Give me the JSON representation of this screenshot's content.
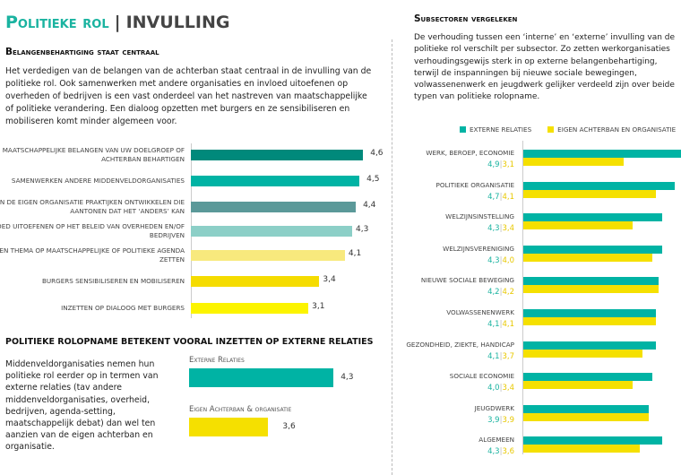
{
  "header": {
    "title_part1": "Politieke rol",
    "separator": "|",
    "title_part2": "INVULLING"
  },
  "section1": {
    "heading": "Belangenbehartiging staat centraal",
    "body": "Het verdedigen van de belangen van de achterban staat centraal in de invulling van de politieke rol. Ook samenwerken met andere organisaties en invloed uitoefenen op overheden of bedrijven is een vast onderdeel van het nastreven van maatschappelijke of politieke verandering. Een dialoog opzetten met burgers en ze sensibiliseren en mobiliseren komt minder algemeen voor."
  },
  "section2": {
    "heading": "POLITIEKE ROLOPNAME BETEKENT VOORAL INZETTEN OP EXTERNE RELATIES",
    "body": "Middenveldorganisaties nemen hun politieke rol eerder op in termen van externe relaties (tav andere middenveldorganisaties, overheid, bedrijven, agenda-setting, maatschappelijk debat) dan wel ten aanzien van de eigen achterban en organisatie."
  },
  "section3": {
    "heading": "Subsectoren vergeleken",
    "body": "De verhouding tussen een ‘interne’ en ‘externe’ invulling van de politieke rol verschilt per subsector. Zo zetten werkorganisaties verhoudingsgewijs sterk in op externe belangenbehartiging, terwijl de inspanningen bij nieuwe sociale bewegingen, volwassenenwerk en jeugdwerk gelijker verdeeld zijn over beide typen van politieke rolopname."
  },
  "colors": {
    "teal": "#00b3a4",
    "yellow": "#f5e000"
  },
  "chart_data": [
    {
      "type": "bar",
      "orientation": "horizontal",
      "title": "",
      "categories": [
        "E MAATSCHAPPELIJKE BELANGEN VAN UW DOELGROEP OF ACHTERBAN BEHARTIGEN",
        "SAMENWERKEN  ANDERE MIDDENVELDORGANISATIES",
        "BINNEN DE EIGEN ORGANISATIE PRAKTIJKEN ONTWIKKELEN DIE AANTONEN DAT HET ‘ANDERS’ KAN",
        "NVLOED UITOEFENEN OP HET BELEID VAN OVERHEDEN EN/OF BEDRIJVEN",
        "EEN THEMA OP MAATSCHAPPELIJKE OF POLITIEKE AGENDA ZETTEN",
        "BURGERS SENSIBILISEREN EN MOBILISEREN",
        "INZETTEN OP DIALOOG MET BURGERS"
      ],
      "values": [
        4.6,
        4.5,
        4.4,
        4.3,
        4.1,
        3.4,
        3.1
      ],
      "labels": [
        "4,6",
        "4,5",
        "4,4",
        "4,3",
        "4,1",
        "3,4",
        "3,1"
      ],
      "colors": [
        "#00897b",
        "#00b3a4",
        "#5b9999",
        "#8ccfc7",
        "#f8e97d",
        "#f5dc00",
        "#fcf400"
      ]
    },
    {
      "type": "bar",
      "orientation": "horizontal",
      "categories": [
        "Externe Relaties",
        "Eigen Achterban & organisatie"
      ],
      "values": [
        4.3,
        3.6
      ],
      "labels": [
        "4,3",
        "3,6"
      ],
      "colors": [
        "#00b3a4",
        "#f5e000"
      ]
    },
    {
      "type": "bar",
      "orientation": "horizontal",
      "legend": "top",
      "series": [
        {
          "name": "EXTERNE RELATIES",
          "values": [
            4.9,
            4.7,
            4.3,
            4.3,
            4.2,
            4.1,
            4.1,
            4.0,
            3.9,
            4.3
          ]
        },
        {
          "name": "EIGEN ACHTERBAN EN ORGANISATIE",
          "values": [
            3.1,
            4.1,
            3.4,
            4.0,
            4.2,
            4.1,
            3.7,
            3.4,
            3.9,
            3.6
          ]
        }
      ],
      "categories": [
        "WERK, BEROEP, ECONOMIE",
        "POLITIEKE ORGANISATIE",
        "WELZIJNSINSTELLING",
        "WELZIJNSVERENIGING",
        "NIEUWE SOCIALE BEWEGING",
        "VOLWASSENENWERK",
        "GEZONDHEID, ZIEKTE, HANDICAP",
        "SOCIALE ECONOMIE",
        "JEUGDWERK",
        "ALGEMEEN"
      ],
      "value_labels": [
        [
          "4,9",
          "3,1"
        ],
        [
          "4,7",
          "4,1"
        ],
        [
          "4,3",
          "3,4"
        ],
        [
          "4,3",
          "4,0"
        ],
        [
          "4,2",
          "4,2"
        ],
        [
          "4,1",
          "4,1"
        ],
        [
          "4,1",
          "3,7"
        ],
        [
          "4,0",
          "3,4"
        ],
        [
          "3,9",
          "3,9"
        ],
        [
          "4,3",
          "3,6"
        ]
      ],
      "label_separator": "|"
    }
  ]
}
